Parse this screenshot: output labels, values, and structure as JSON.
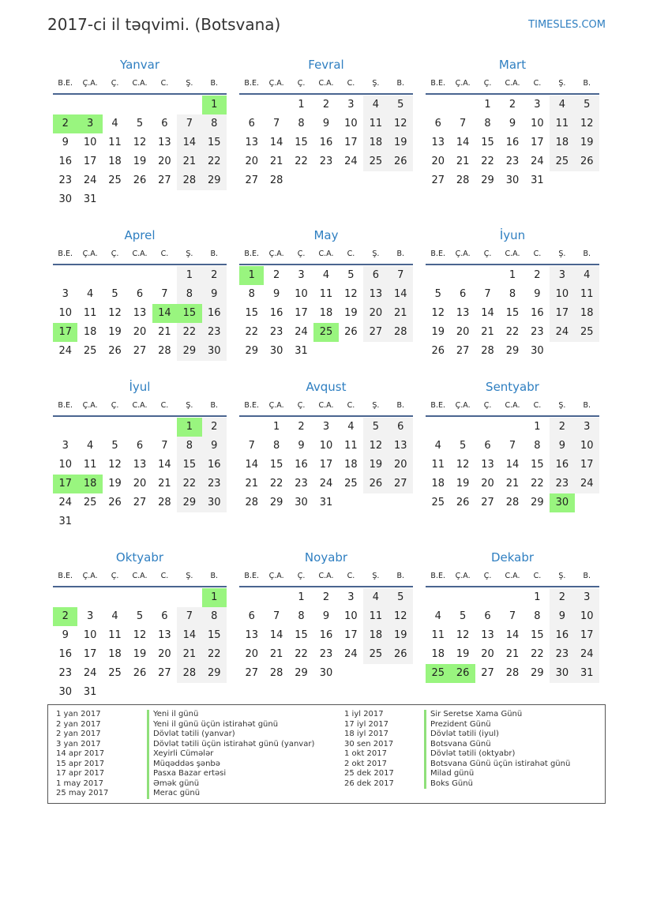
{
  "header": {
    "title": "2017-ci il təqvimi. (Botsvana)",
    "brand": "TIMESLES.COM"
  },
  "year": 2017,
  "weekdays": [
    "B.E.",
    "Ç.A.",
    "Ç.",
    "C.A.",
    "C.",
    "Ş.",
    "B."
  ],
  "months": [
    {
      "name": "Yanvar",
      "holidays": [
        1,
        2,
        3
      ]
    },
    {
      "name": "Fevral",
      "holidays": []
    },
    {
      "name": "Mart",
      "holidays": []
    },
    {
      "name": "Aprel",
      "holidays": [
        14,
        15,
        17
      ]
    },
    {
      "name": "May",
      "holidays": [
        1,
        25
      ]
    },
    {
      "name": "İyun",
      "holidays": []
    },
    {
      "name": "İyul",
      "holidays": [
        1,
        17,
        18
      ]
    },
    {
      "name": "Avqust",
      "holidays": []
    },
    {
      "name": "Sentyabr",
      "holidays": [
        30
      ]
    },
    {
      "name": "Oktyabr",
      "holidays": [
        1,
        2
      ]
    },
    {
      "name": "Noyabr",
      "holidays": []
    },
    {
      "name": "Dekabr",
      "holidays": [
        25,
        26
      ]
    }
  ],
  "colors": {
    "holiday": "#99f57f",
    "weekend": "#f2f2f2",
    "accent": "#2f7fc1"
  },
  "legend": {
    "left": [
      {
        "date": "1 yan 2017",
        "name": "Yeni il günü"
      },
      {
        "date": "2 yan 2017",
        "name": "Yeni il günü üçün istirahət günü"
      },
      {
        "date": "2 yan 2017",
        "name": "Dövlət tətili (yanvar)"
      },
      {
        "date": "3 yan 2017",
        "name": "Dövlət tətili üçün istirahət günü (yanvar)"
      },
      {
        "date": "14 apr 2017",
        "name": "Xeyirli Cümələr"
      },
      {
        "date": "15 apr 2017",
        "name": "Müqəddəs şənbə"
      },
      {
        "date": "17 apr 2017",
        "name": "Pasxa Bazar ertəsi"
      },
      {
        "date": "1 may 2017",
        "name": "Əmək günü"
      },
      {
        "date": "25 may 2017",
        "name": "Merac günü"
      }
    ],
    "right": [
      {
        "date": "1 iyl 2017",
        "name": "Sir Seretse Xama Günü"
      },
      {
        "date": "17 iyl 2017",
        "name": "Prezident Günü"
      },
      {
        "date": "18 iyl 2017",
        "name": "Dövlət tətili (iyul)"
      },
      {
        "date": "30 sen 2017",
        "name": "Botsvana Günü"
      },
      {
        "date": "1 okt 2017",
        "name": "Dövlət tətili (oktyabr)"
      },
      {
        "date": "2 okt 2017",
        "name": "Botsvana Günü üçün istirahət günü"
      },
      {
        "date": "25 dek 2017",
        "name": "Milad günü"
      },
      {
        "date": "26 dek 2017",
        "name": "Boks Günü"
      }
    ]
  }
}
